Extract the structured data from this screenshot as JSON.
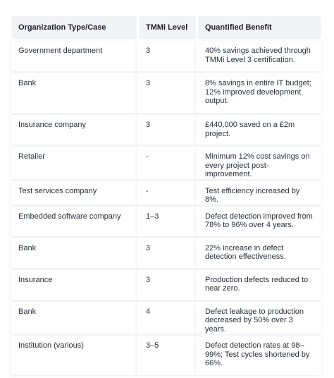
{
  "table": {
    "headers": [
      "Organization Type/Case",
      "TMMi Level",
      "Quantified Benefit"
    ],
    "rows": [
      {
        "org": "Government department",
        "level": "3",
        "benefit": "40% savings achieved through TMMi Level 3 certification."
      },
      {
        "org": "Bank",
        "level": "3",
        "benefit": "8% savings in entire IT budget; 12% improved development output."
      },
      {
        "org": "Insurance company",
        "level": "3",
        "benefit": "£440,000 saved on a £2m project."
      },
      {
        "org": "Retailer",
        "level": "-",
        "benefit": "Minimum 12% cost savings on every project post-improvement."
      },
      {
        "org": "Test services company",
        "level": "-",
        "benefit": "Test efficiency increased by 8%."
      },
      {
        "org": "Embedded software company",
        "level": "1–3",
        "benefit": "Defect detection improved from 78% to 96% over 4 years."
      },
      {
        "org": "Bank",
        "level": "3",
        "benefit": "22% increase in defect detection effectiveness."
      },
      {
        "org": "Insurance",
        "level": "3",
        "benefit": "Production defects reduced to near zero."
      },
      {
        "org": "Bank",
        "level": "4",
        "benefit": "Defect leakage to production decreased by 50% over 3 years."
      },
      {
        "org": "Institution (various)",
        "level": "3–5",
        "benefit": "Defect detection rates at 98–99%; Test cycles shortened by 66%."
      }
    ]
  }
}
